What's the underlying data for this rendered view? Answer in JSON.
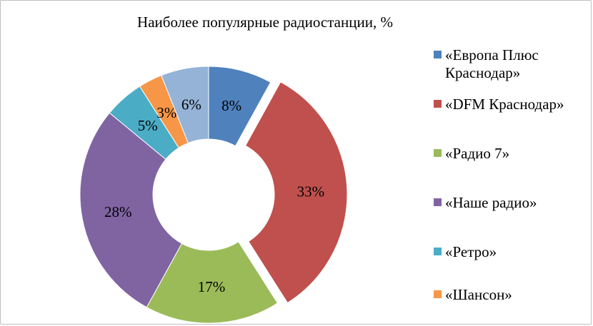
{
  "chart_data": {
    "type": "pie",
    "title": "Наиболее популярные радиостанции, %",
    "legend_position": "right",
    "slices": [
      {
        "name": "«Европа Плюс Краснодар»",
        "value": 8,
        "label": "8%",
        "color": "#4f81bd"
      },
      {
        "name": "«DFM Краснодар»",
        "value": 33,
        "label": "33%",
        "color": "#c0504d"
      },
      {
        "name": "«Радио 7»",
        "value": 17,
        "label": "17%",
        "color": "#9bbb59"
      },
      {
        "name": "«Наше радио»",
        "value": 28,
        "label": "28%",
        "color": "#8064a2"
      },
      {
        "name": "«Ретро»",
        "value": 5,
        "label": "5%",
        "color": "#4bacc6"
      },
      {
        "name": "«Шансон»",
        "value": 3,
        "label": "3%",
        "color": "#f79646"
      },
      {
        "name": "",
        "value": 6,
        "label": "6%",
        "color": "#95b3d7"
      }
    ]
  }
}
